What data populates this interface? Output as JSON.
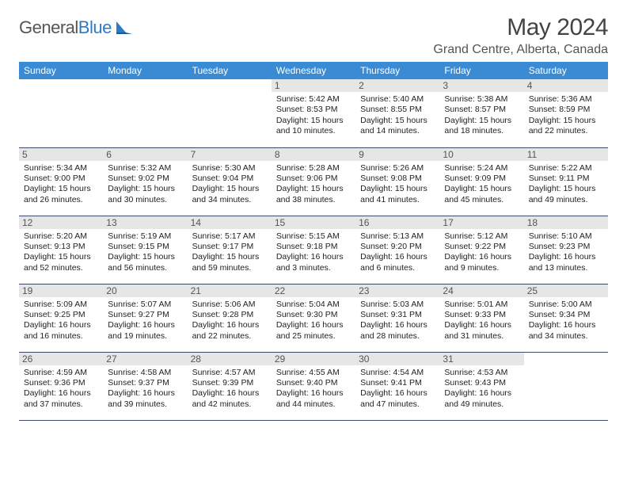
{
  "brand": {
    "part1": "General",
    "part2": "Blue"
  },
  "title": "May 2024",
  "location": "Grand Centre, Alberta, Canada",
  "colors": {
    "header_bg": "#3b8bd4",
    "header_fg": "#ffffff",
    "daynum_bg": "#e6e6e6",
    "border": "#3b4a66",
    "brand_blue": "#2c7bc4"
  },
  "weekdays": [
    "Sunday",
    "Monday",
    "Tuesday",
    "Wednesday",
    "Thursday",
    "Friday",
    "Saturday"
  ],
  "weeks": [
    [
      null,
      null,
      null,
      {
        "n": "1",
        "sunrise": "5:42 AM",
        "sunset": "8:53 PM",
        "day_h": "15",
        "day_m": "10"
      },
      {
        "n": "2",
        "sunrise": "5:40 AM",
        "sunset": "8:55 PM",
        "day_h": "15",
        "day_m": "14"
      },
      {
        "n": "3",
        "sunrise": "5:38 AM",
        "sunset": "8:57 PM",
        "day_h": "15",
        "day_m": "18"
      },
      {
        "n": "4",
        "sunrise": "5:36 AM",
        "sunset": "8:59 PM",
        "day_h": "15",
        "day_m": "22"
      }
    ],
    [
      {
        "n": "5",
        "sunrise": "5:34 AM",
        "sunset": "9:00 PM",
        "day_h": "15",
        "day_m": "26"
      },
      {
        "n": "6",
        "sunrise": "5:32 AM",
        "sunset": "9:02 PM",
        "day_h": "15",
        "day_m": "30"
      },
      {
        "n": "7",
        "sunrise": "5:30 AM",
        "sunset": "9:04 PM",
        "day_h": "15",
        "day_m": "34"
      },
      {
        "n": "8",
        "sunrise": "5:28 AM",
        "sunset": "9:06 PM",
        "day_h": "15",
        "day_m": "38"
      },
      {
        "n": "9",
        "sunrise": "5:26 AM",
        "sunset": "9:08 PM",
        "day_h": "15",
        "day_m": "41"
      },
      {
        "n": "10",
        "sunrise": "5:24 AM",
        "sunset": "9:09 PM",
        "day_h": "15",
        "day_m": "45"
      },
      {
        "n": "11",
        "sunrise": "5:22 AM",
        "sunset": "9:11 PM",
        "day_h": "15",
        "day_m": "49"
      }
    ],
    [
      {
        "n": "12",
        "sunrise": "5:20 AM",
        "sunset": "9:13 PM",
        "day_h": "15",
        "day_m": "52"
      },
      {
        "n": "13",
        "sunrise": "5:19 AM",
        "sunset": "9:15 PM",
        "day_h": "15",
        "day_m": "56"
      },
      {
        "n": "14",
        "sunrise": "5:17 AM",
        "sunset": "9:17 PM",
        "day_h": "15",
        "day_m": "59"
      },
      {
        "n": "15",
        "sunrise": "5:15 AM",
        "sunset": "9:18 PM",
        "day_h": "16",
        "day_m": "3"
      },
      {
        "n": "16",
        "sunrise": "5:13 AM",
        "sunset": "9:20 PM",
        "day_h": "16",
        "day_m": "6"
      },
      {
        "n": "17",
        "sunrise": "5:12 AM",
        "sunset": "9:22 PM",
        "day_h": "16",
        "day_m": "9"
      },
      {
        "n": "18",
        "sunrise": "5:10 AM",
        "sunset": "9:23 PM",
        "day_h": "16",
        "day_m": "13"
      }
    ],
    [
      {
        "n": "19",
        "sunrise": "5:09 AM",
        "sunset": "9:25 PM",
        "day_h": "16",
        "day_m": "16"
      },
      {
        "n": "20",
        "sunrise": "5:07 AM",
        "sunset": "9:27 PM",
        "day_h": "16",
        "day_m": "19"
      },
      {
        "n": "21",
        "sunrise": "5:06 AM",
        "sunset": "9:28 PM",
        "day_h": "16",
        "day_m": "22"
      },
      {
        "n": "22",
        "sunrise": "5:04 AM",
        "sunset": "9:30 PM",
        "day_h": "16",
        "day_m": "25"
      },
      {
        "n": "23",
        "sunrise": "5:03 AM",
        "sunset": "9:31 PM",
        "day_h": "16",
        "day_m": "28"
      },
      {
        "n": "24",
        "sunrise": "5:01 AM",
        "sunset": "9:33 PM",
        "day_h": "16",
        "day_m": "31"
      },
      {
        "n": "25",
        "sunrise": "5:00 AM",
        "sunset": "9:34 PM",
        "day_h": "16",
        "day_m": "34"
      }
    ],
    [
      {
        "n": "26",
        "sunrise": "4:59 AM",
        "sunset": "9:36 PM",
        "day_h": "16",
        "day_m": "37"
      },
      {
        "n": "27",
        "sunrise": "4:58 AM",
        "sunset": "9:37 PM",
        "day_h": "16",
        "day_m": "39"
      },
      {
        "n": "28",
        "sunrise": "4:57 AM",
        "sunset": "9:39 PM",
        "day_h": "16",
        "day_m": "42"
      },
      {
        "n": "29",
        "sunrise": "4:55 AM",
        "sunset": "9:40 PM",
        "day_h": "16",
        "day_m": "44"
      },
      {
        "n": "30",
        "sunrise": "4:54 AM",
        "sunset": "9:41 PM",
        "day_h": "16",
        "day_m": "47"
      },
      {
        "n": "31",
        "sunrise": "4:53 AM",
        "sunset": "9:43 PM",
        "day_h": "16",
        "day_m": "49"
      },
      null
    ]
  ],
  "labels": {
    "sunrise": "Sunrise: ",
    "sunset": "Sunset: ",
    "daylight": "Daylight: ",
    "hours": " hours",
    "and": "and ",
    "minutes": " minutes."
  }
}
